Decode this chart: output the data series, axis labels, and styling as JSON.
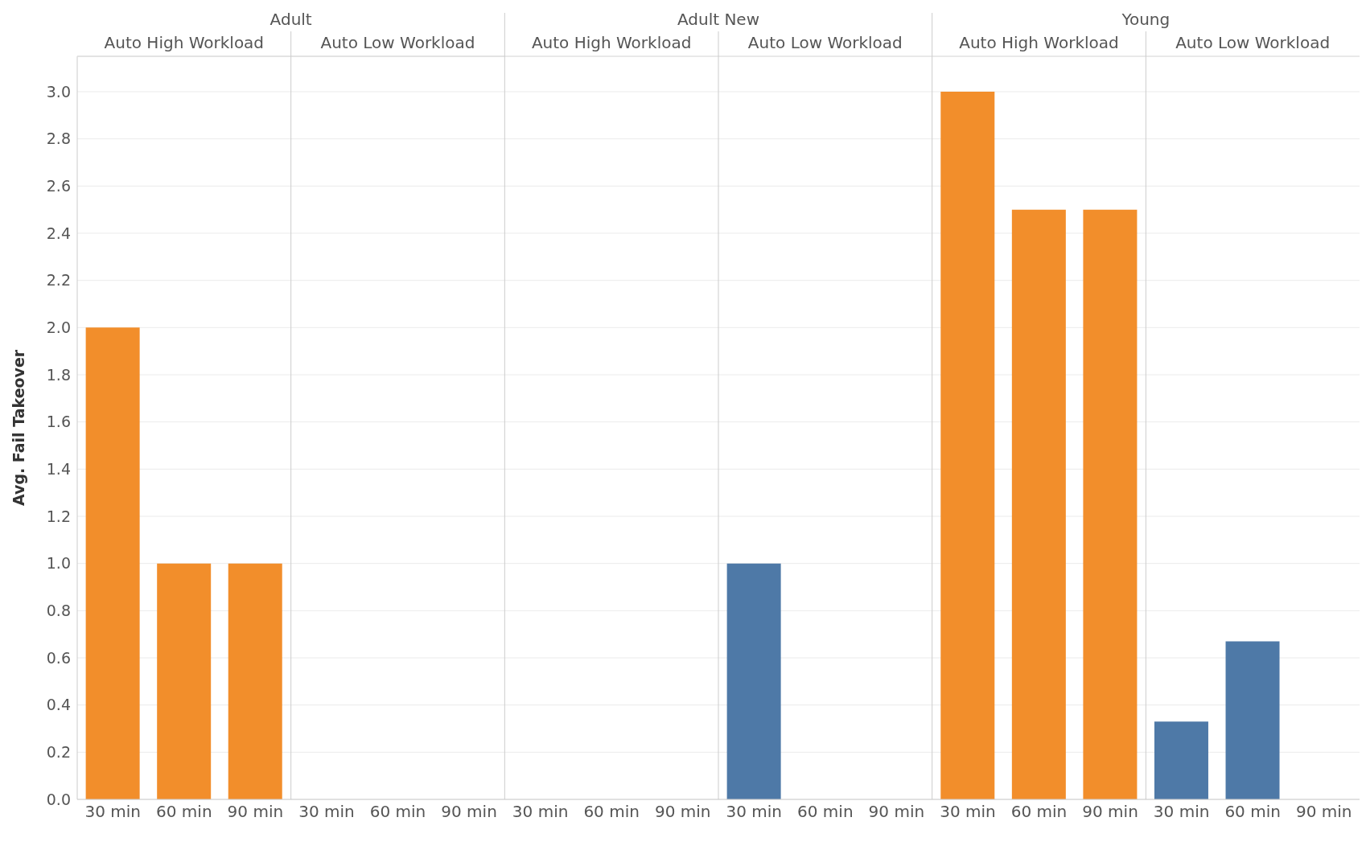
{
  "chart_data": {
    "type": "bar",
    "ylabel": "Avg. Fail Takeover",
    "categories": [
      "30 min",
      "60 min",
      "90 min",
      "30 min",
      "60 min",
      "90 min",
      "30 min",
      "60 min",
      "90 min",
      "30 min",
      "60 min",
      "90 min",
      "30 min",
      "60 min",
      "90 min",
      "30 min",
      "60 min",
      "90 min"
    ],
    "values": [
      2,
      1,
      1,
      null,
      null,
      null,
      null,
      null,
      null,
      1,
      null,
      null,
      3,
      2.5,
      2.5,
      0.33,
      0.67,
      null
    ],
    "colors": [
      "#f28e2b",
      "#f28e2b",
      "#f28e2b",
      "#4e79a7",
      "#4e79a7",
      "#4e79a7",
      "#f28e2b",
      "#f28e2b",
      "#f28e2b",
      "#4e79a7",
      "#4e79a7",
      "#4e79a7",
      "#f28e2b",
      "#f28e2b",
      "#f28e2b",
      "#4e79a7",
      "#4e79a7",
      "#4e79a7"
    ],
    "ylim": [
      0,
      3.15
    ],
    "yticks": [
      {
        "value": 0,
        "label": "0.0"
      },
      0.2,
      0.4,
      0.6,
      0.8,
      {
        "value": 1,
        "label": "1.0"
      },
      1.2,
      1.4,
      1.6,
      1.8,
      {
        "value": 2,
        "label": "2.0"
      },
      2.2,
      2.4,
      2.6,
      2.8,
      {
        "value": 3,
        "label": "3.0"
      }
    ],
    "grid": "y",
    "annotations": [
      "Adult",
      "Adult New",
      "Young",
      "Auto High Workload",
      "Auto Low Workload",
      "Auto High Workload",
      "Auto Low Workload",
      "Auto High Workload",
      "Auto Low Workload"
    ]
  }
}
